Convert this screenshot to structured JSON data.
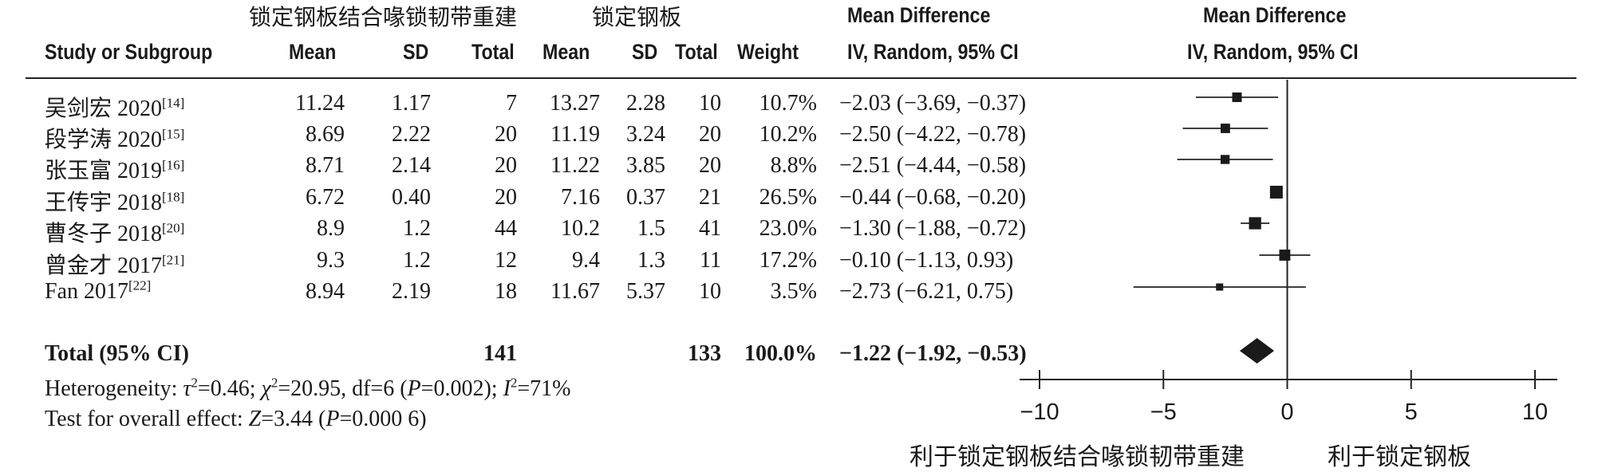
{
  "header": {
    "group_exp": "锁定钢板结合喙锁韧带重建",
    "group_ctrl": "锁定钢板",
    "study": "Study or Subgroup",
    "mean": "Mean",
    "sd": "SD",
    "total": "Total",
    "weight": "Weight",
    "md_title": "Mean Difference",
    "md_method": "IV, Random, 95% CI",
    "plot_title": "Mean Difference",
    "plot_method": "IV, Random, 95% CI"
  },
  "studies": [
    {
      "name": "吴剑宏 2020",
      "ref": "[14]",
      "e_mean": "11.24",
      "e_sd": "1.17",
      "e_total": "7",
      "c_mean": "13.27",
      "c_sd": "2.28",
      "c_total": "10",
      "weight": "10.7%",
      "ci": "−2.03 (−3.69, −0.37)"
    },
    {
      "name": "段学涛 2020",
      "ref": "[15]",
      "e_mean": "8.69",
      "e_sd": "2.22",
      "e_total": "20",
      "c_mean": "11.19",
      "c_sd": "3.24",
      "c_total": "20",
      "weight": "10.2%",
      "ci": "−2.50 (−4.22, −0.78)"
    },
    {
      "name": "张玉富 2019",
      "ref": "[16]",
      "e_mean": "8.71",
      "e_sd": "2.14",
      "e_total": "20",
      "c_mean": "11.22",
      "c_sd": "3.85",
      "c_total": "20",
      "weight": "8.8%",
      "ci": "−2.51 (−4.44, −0.58)"
    },
    {
      "name": "王传宇 2018",
      "ref": "[18]",
      "e_mean": "6.72",
      "e_sd": "0.40",
      "e_total": "20",
      "c_mean": "7.16",
      "c_sd": "0.37",
      "c_total": "21",
      "weight": "26.5%",
      "ci": "−0.44 (−0.68, −0.20)"
    },
    {
      "name": "曹冬子 2018",
      "ref": "[20]",
      "e_mean": "8.9",
      "e_sd": "1.2",
      "e_total": "44",
      "c_mean": "10.2",
      "c_sd": "1.5",
      "c_total": "41",
      "weight": "23.0%",
      "ci": "−1.30 (−1.88, −0.72)"
    },
    {
      "name": "曾金才 2017",
      "ref": "[21]",
      "e_mean": "9.3",
      "e_sd": "1.2",
      "e_total": "12",
      "c_mean": "9.4",
      "c_sd": "1.3",
      "c_total": "11",
      "weight": "17.2%",
      "ci": "−0.10 (−1.13, 0.93)"
    },
    {
      "name": "Fan 2017",
      "ref": "[22]",
      "e_mean": "8.94",
      "e_sd": "2.19",
      "e_total": "18",
      "c_mean": "11.67",
      "c_sd": "5.37",
      "c_total": "10",
      "weight": "3.5%",
      "ci": "−2.73 (−6.21, 0.75)"
    }
  ],
  "total": {
    "label": "Total (95% CI)",
    "e_total": "141",
    "c_total": "133",
    "weight": "100.0%",
    "ci": "−1.22 (−1.92, −0.53)"
  },
  "heterogeneity": {
    "prefix": "Heterogeneity: ",
    "tau": "τ",
    "tau_rest": "=0.46; ",
    "chi": "χ",
    "chi_rest": "=20.95, df=6 (",
    "p": "P",
    "p_rest": "=0.002); ",
    "i": "I",
    "i_rest": "=71%",
    "sq": "2"
  },
  "overall": {
    "prefix": "Test for overall effect: ",
    "z": "Z",
    "z_rest": "=3.44 (",
    "p": "P",
    "p_rest": "=0.000 6)"
  },
  "axis_labels": {
    "favours_left": "利于锁定钢板结合喙锁韧带重建",
    "favours_right": "利于锁定钢板"
  },
  "chart_data": {
    "type": "forest",
    "xlim": [
      -10,
      10
    ],
    "ticks": [
      -10,
      -5,
      0,
      5,
      10
    ],
    "tick_labels": [
      "−10",
      "−5",
      "0",
      "5",
      "10"
    ],
    "null_line": 0,
    "studies": [
      {
        "md": -2.03,
        "lo": -3.69,
        "hi": -0.37,
        "weight": 10.7
      },
      {
        "md": -2.5,
        "lo": -4.22,
        "hi": -0.78,
        "weight": 10.2
      },
      {
        "md": -2.51,
        "lo": -4.44,
        "hi": -0.58,
        "weight": 8.8
      },
      {
        "md": -0.44,
        "lo": -0.68,
        "hi": -0.2,
        "weight": 26.5
      },
      {
        "md": -1.3,
        "lo": -1.88,
        "hi": -0.72,
        "weight": 23.0
      },
      {
        "md": -0.1,
        "lo": -1.13,
        "hi": 0.93,
        "weight": 17.2
      },
      {
        "md": -2.73,
        "lo": -6.21,
        "hi": 0.75,
        "weight": 3.5
      }
    ],
    "pooled": {
      "md": -1.22,
      "lo": -1.92,
      "hi": -0.53
    }
  }
}
